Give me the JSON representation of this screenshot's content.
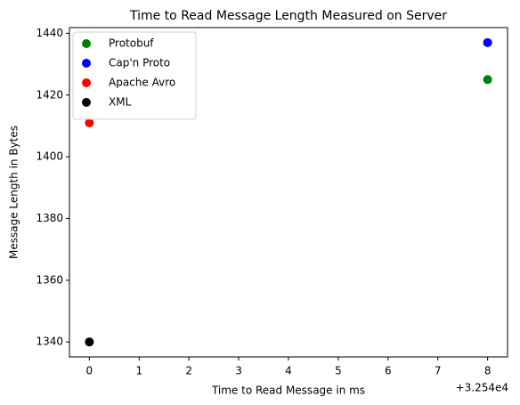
{
  "chart_data": {
    "type": "scatter",
    "title": "Time to Read Message Length Measured on Server",
    "xlabel": "Time to Read Message in ms",
    "ylabel": "Message Length in Bytes",
    "x_offset_label": "+3.254e4",
    "series": [
      {
        "name": "Protobuf",
        "color": "#008000",
        "x": [
          8
        ],
        "values": [
          1425
        ]
      },
      {
        "name": "Cap'n Proto",
        "color": "#0000ff",
        "x": [
          8
        ],
        "values": [
          1437
        ]
      },
      {
        "name": "Apache Avro",
        "color": "#ff0000",
        "x": [
          0
        ],
        "values": [
          1411
        ]
      },
      {
        "name": "XML",
        "color": "#000000",
        "x": [
          0
        ],
        "values": [
          1340
        ]
      }
    ],
    "xlim": [
      -0.4,
      8.4
    ],
    "xticks": [
      0,
      1,
      2,
      3,
      4,
      5,
      6,
      7,
      8
    ],
    "ylim": [
      1335.15,
      1441.85
    ],
    "yticks": [
      1340,
      1360,
      1380,
      1400,
      1420,
      1440
    ],
    "legend": "upper left"
  }
}
